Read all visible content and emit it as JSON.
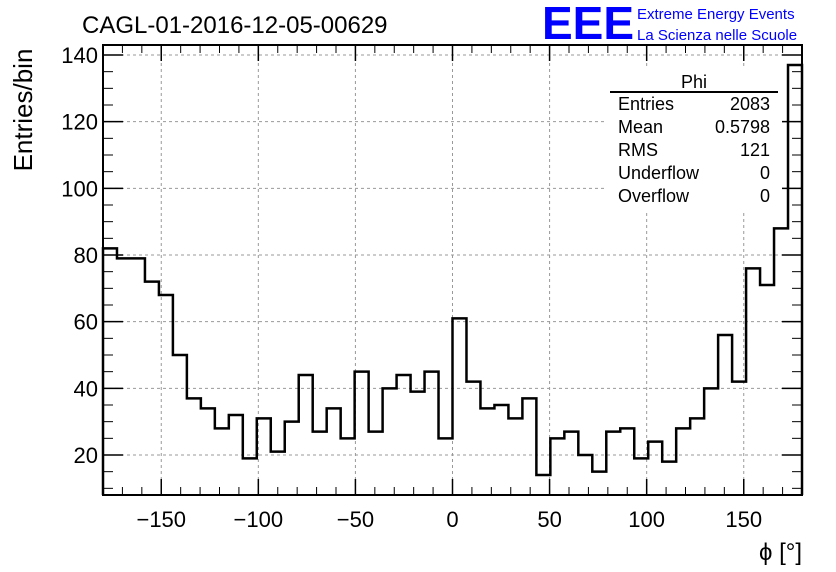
{
  "chart_data": {
    "type": "histogram",
    "title": "CAGL-01-2016-12-05-00629",
    "xlabel": "ϕ [°]",
    "ylabel": "Entries/bin",
    "xlim": [
      -180,
      180
    ],
    "ylim": [
      8,
      143
    ],
    "grid": true,
    "x_ticks": [
      -150,
      -100,
      -50,
      0,
      50,
      100,
      150
    ],
    "x_tick_labels": [
      "−150",
      "−100",
      "−50",
      "0",
      "50",
      "100",
      "150"
    ],
    "y_ticks": [
      20,
      40,
      60,
      80,
      100,
      120,
      140
    ],
    "y_tick_labels": [
      "20",
      "40",
      "60",
      "80",
      "100",
      "120",
      "140"
    ],
    "bin_edges_start": -180,
    "bin_width": 7.2,
    "values": [
      82,
      79,
      79,
      72,
      68,
      50,
      37,
      34,
      28,
      32,
      19,
      31,
      21,
      30,
      44,
      27,
      34,
      25,
      45,
      27,
      40,
      44,
      39,
      45,
      25,
      61,
      42,
      34,
      35,
      31,
      37,
      14,
      25,
      27,
      20,
      15,
      27,
      28,
      19,
      24,
      18,
      28,
      31,
      40,
      56,
      42,
      76,
      71,
      88,
      137
    ],
    "stats_box": {
      "title": "Phi",
      "rows": [
        {
          "label": "Entries",
          "value": "2083"
        },
        {
          "label": "Mean",
          "value": "0.5798"
        },
        {
          "label": "RMS",
          "value": "121"
        },
        {
          "label": "Underflow",
          "value": "0"
        },
        {
          "label": "Overflow",
          "value": "0"
        }
      ]
    }
  },
  "branding": {
    "logo": "EEE",
    "line1": "Extreme Energy Events",
    "line2": "La Scienza nelle Scuole",
    "color": "#0000ff"
  }
}
